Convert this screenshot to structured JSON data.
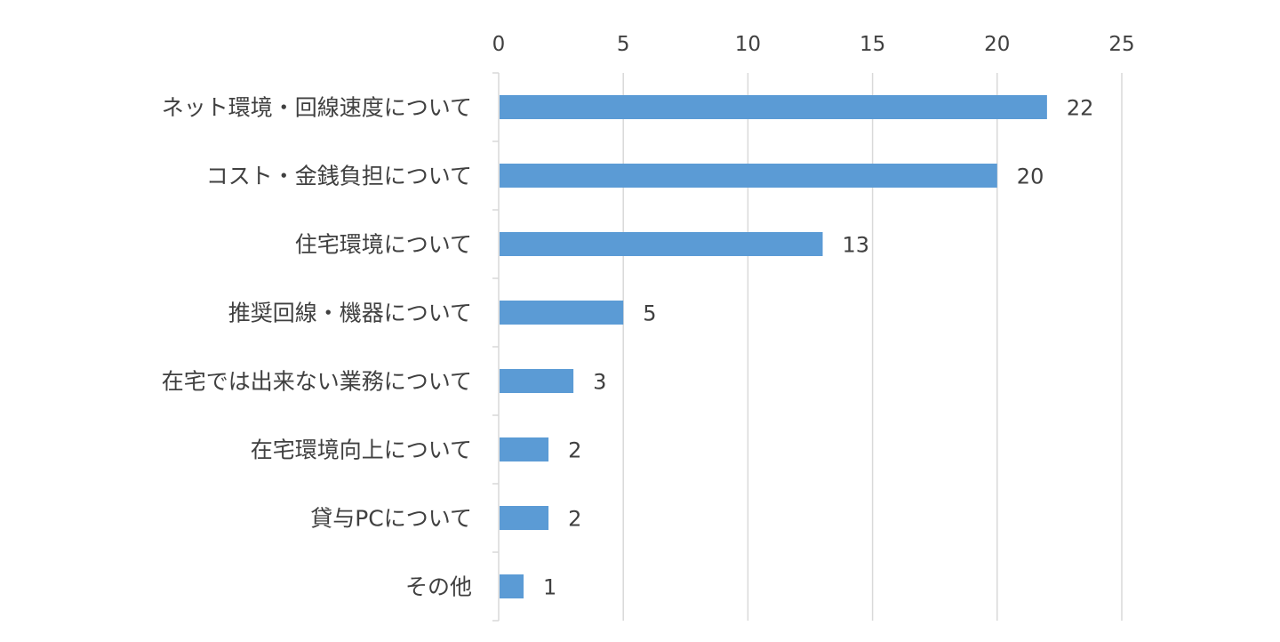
{
  "chart_data": {
    "type": "bar",
    "orientation": "horizontal",
    "title": "",
    "xlabel": "",
    "ylabel": "",
    "categories": [
      "ネット環境・回線速度について",
      "コスト・金銭負担について",
      "住宅環境について",
      "推奨回線・機器について",
      "在宅では出来ない業務について",
      "在宅環境向上について",
      "貸与PCについて",
      "その他"
    ],
    "values": [
      22,
      20,
      13,
      5,
      3,
      2,
      2,
      1
    ],
    "value_labels": [
      "22",
      "20",
      "13",
      "5",
      "3",
      "2",
      "2",
      "1"
    ],
    "xlim": [
      0,
      25
    ],
    "x_ticks": [
      "0",
      "5",
      "10",
      "15",
      "20",
      "25"
    ],
    "x_axis_position": "top",
    "grid": true,
    "legend": "none",
    "bar_color": "#5b9bd5",
    "grid_color": "#d9d9d9",
    "text_color": "#404040"
  }
}
